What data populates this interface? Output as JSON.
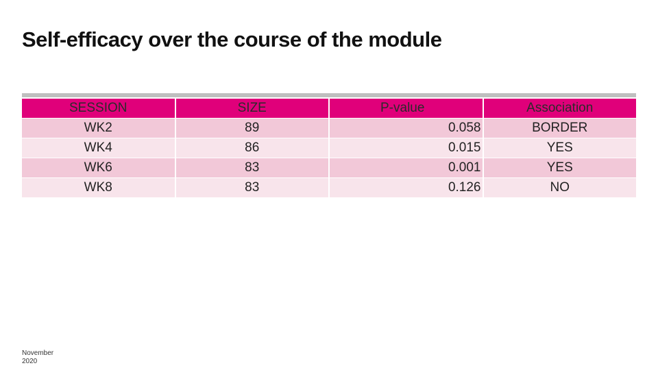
{
  "header": {
    "title": "Self-efficacy over the course of the module"
  },
  "table": {
    "columns": [
      "SESSION",
      "SIZE",
      "P-value",
      "Association"
    ],
    "rows": [
      [
        "WK2",
        "89",
        "0.058",
        "BORDER"
      ],
      [
        "WK4",
        "86",
        "0.015",
        "YES"
      ],
      [
        "WK6",
        "83",
        "0.001",
        "YES"
      ],
      [
        "WK8",
        "83",
        "0.126",
        "NO"
      ]
    ]
  },
  "footer": {
    "date": "November 2020"
  }
}
